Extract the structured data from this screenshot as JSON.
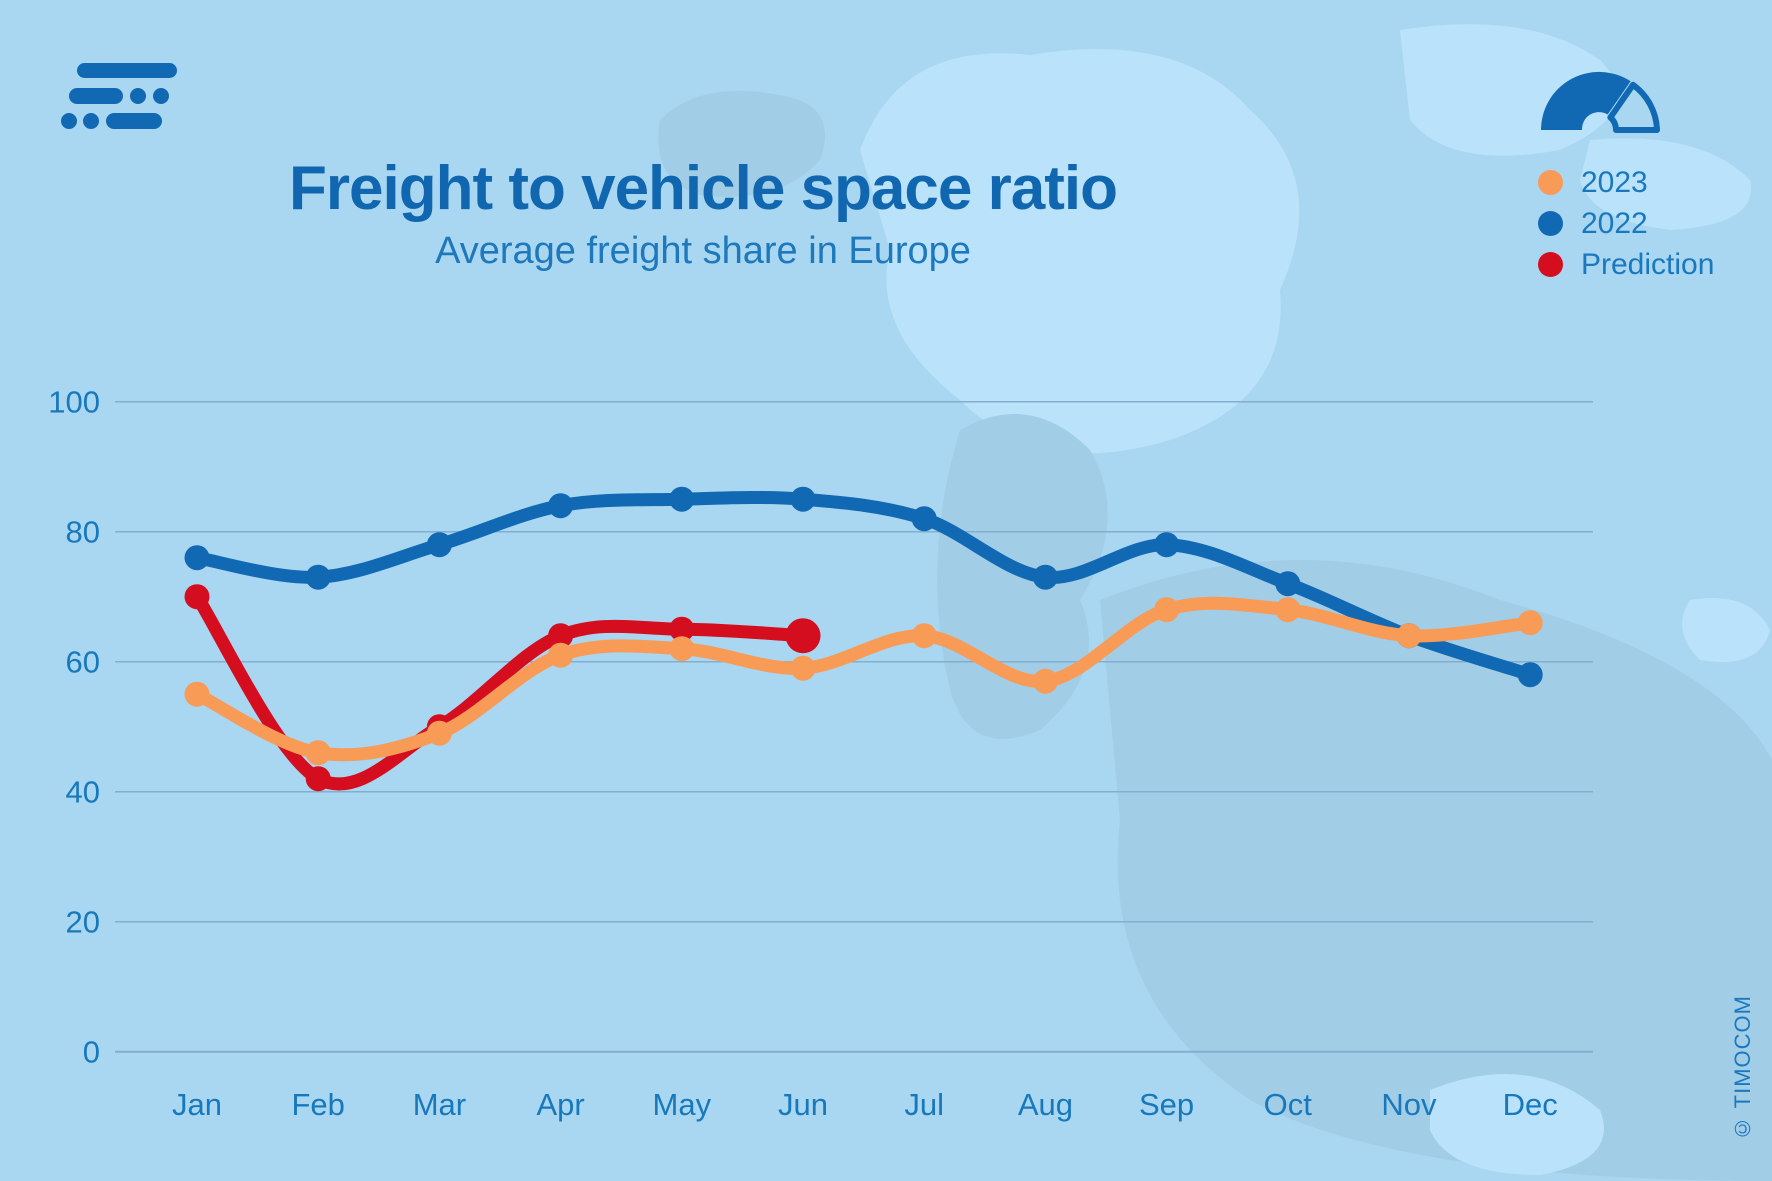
{
  "header": {
    "title": "Freight to vehicle space ratio",
    "subtitle": "Average freight share in Europe"
  },
  "legend": [
    {
      "label": "2023",
      "color": "#F89B57"
    },
    {
      "label": "2022",
      "color": "#1169B4"
    },
    {
      "label": "Prediction",
      "color": "#D40E1F"
    }
  ],
  "footer": {
    "copyright": "© TIMOCOM"
  },
  "colors": {
    "background": "#A9D6F0",
    "map_dark": "#A2CDE7",
    "map_light": "#BAE2FA",
    "grid": "#84AECF",
    "axis_text": "#1878BC",
    "title": "#1167AF",
    "subtitle": "#1E78BC",
    "legend_text": "#1A78BE",
    "series_2023": "#F89B57",
    "series_2022": "#1169B4",
    "series_prediction": "#D40E1F"
  },
  "chart_data": {
    "type": "line",
    "title": "Freight to vehicle space ratio",
    "subtitle": "Average freight share in Europe",
    "categories": [
      "Jan",
      "Feb",
      "Mar",
      "Apr",
      "May",
      "Jun",
      "Jul",
      "Aug",
      "Sep",
      "Oct",
      "Nov",
      "Dec"
    ],
    "series": [
      {
        "name": "2023",
        "color": "#F89B57",
        "values": [
          55,
          46,
          49,
          61,
          62,
          59,
          64,
          57,
          68,
          68,
          64,
          66
        ]
      },
      {
        "name": "2022",
        "color": "#1169B4",
        "values": [
          76,
          73,
          78,
          84,
          85,
          85,
          82,
          73,
          78,
          72,
          64,
          58
        ]
      },
      {
        "name": "Prediction",
        "color": "#D40E1F",
        "values": [
          70,
          42,
          50,
          64,
          65,
          64,
          null,
          null,
          null,
          null,
          null,
          null
        ]
      }
    ],
    "yticks": [
      0,
      20,
      40,
      60,
      80,
      100
    ],
    "ylim": [
      0,
      100
    ],
    "grid": "horizontal",
    "legend_position": "top-right",
    "draw_order": [
      "2022",
      "Prediction",
      "2023"
    ],
    "smoothed": true
  }
}
